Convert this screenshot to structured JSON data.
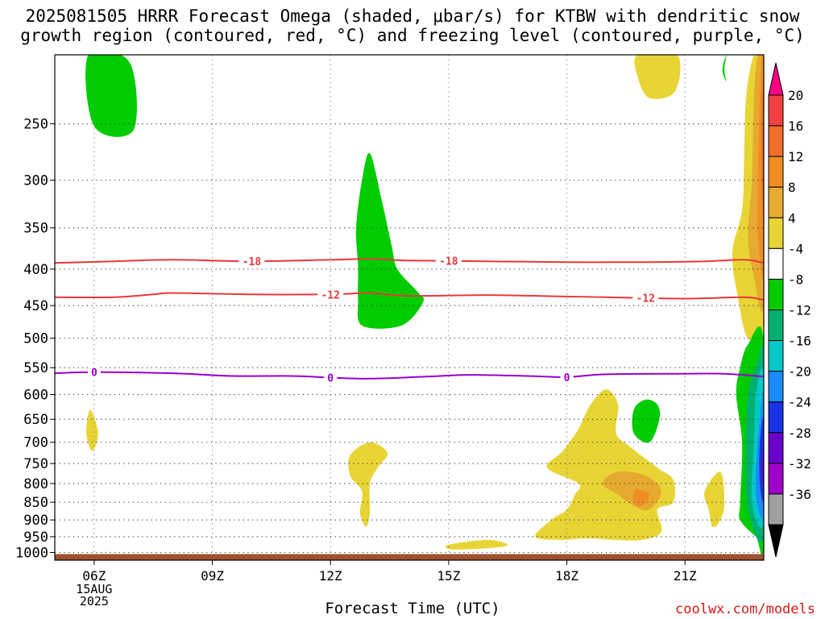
{
  "title_line1": "2025081505 HRRR Forecast Omega (shaded, μbar/s) for KTBW with dendritic snow",
  "title_line2": "growth region (contoured, red, °C) and freezing level (contoured, purple, °C)",
  "credit": "coolwx.com/models",
  "chart_data": {
    "type": "time-height contour",
    "xlabel": "Forecast Time (UTC)",
    "ylabel": "",
    "x_ticks": [
      "06Z",
      "09Z",
      "12Z",
      "15Z",
      "18Z",
      "21Z"
    ],
    "x_ticks_hours": [
      6,
      9,
      12,
      15,
      18,
      21
    ],
    "x_range_hours": [
      5,
      23
    ],
    "date_label": [
      "15AUG",
      "2025"
    ],
    "y_ticks": [
      250,
      300,
      350,
      400,
      450,
      500,
      550,
      600,
      650,
      700,
      750,
      800,
      850,
      900,
      950,
      1000
    ],
    "y_range_hPa": [
      200,
      1025
    ],
    "y_scale": "log",
    "grid": true,
    "colorbar": {
      "labels": [
        "20",
        "16",
        "12",
        "8",
        "4",
        "-4",
        "-8",
        "-12",
        "-16",
        "-20",
        "-24",
        "-28",
        "-32",
        "-36"
      ],
      "colors": [
        "#ff0080",
        "#f44040",
        "#f26c2a",
        "#f08e24",
        "#e6aa30",
        "#e8d535",
        "#ffffff",
        "#00cc00",
        "#00b070",
        "#00c8c8",
        "#1a8cff",
        "#1a32e6",
        "#6a00cc",
        "#a000c8",
        "#a0a0a0",
        "#000000"
      ]
    },
    "contours": [
      {
        "name": "-18",
        "color": "#e8383a",
        "label_at_hours": [
          10.0,
          15.0
        ],
        "points": [
          [
            5.0,
            392
          ],
          [
            6.5,
            390
          ],
          [
            8.0,
            388
          ],
          [
            10.0,
            390
          ],
          [
            12.0,
            388
          ],
          [
            13.0,
            387
          ],
          [
            14.0,
            389
          ],
          [
            16.0,
            390
          ],
          [
            18.0,
            391
          ],
          [
            20.0,
            391
          ],
          [
            21.5,
            390
          ],
          [
            22.5,
            388
          ],
          [
            23.0,
            392
          ]
        ]
      },
      {
        "name": "-12",
        "color": "#e8383a",
        "label_at_hours": [
          12.0,
          20.0
        ],
        "points": [
          [
            5.0,
            438
          ],
          [
            6.5,
            438
          ],
          [
            7.5,
            434
          ],
          [
            8.0,
            432
          ],
          [
            10.0,
            434
          ],
          [
            12.0,
            434
          ],
          [
            13.0,
            432
          ],
          [
            14.0,
            436
          ],
          [
            16.0,
            435
          ],
          [
            18.0,
            437
          ],
          [
            19.0,
            438
          ],
          [
            21.0,
            440
          ],
          [
            22.5,
            438
          ],
          [
            23.0,
            442
          ]
        ]
      },
      {
        "name": "0",
        "color": "#9900cc",
        "label_at_hours": [
          6.0,
          12.0,
          18.0
        ],
        "points": [
          [
            5.0,
            560
          ],
          [
            6.0,
            558
          ],
          [
            8.0,
            560
          ],
          [
            9.5,
            565
          ],
          [
            11.0,
            565
          ],
          [
            12.0,
            568
          ],
          [
            13.0,
            570
          ],
          [
            14.5,
            566
          ],
          [
            15.5,
            563
          ],
          [
            17.0,
            565
          ],
          [
            18.0,
            567
          ],
          [
            19.0,
            562
          ],
          [
            21.0,
            561
          ],
          [
            22.0,
            561
          ],
          [
            23.0,
            566
          ]
        ]
      }
    ],
    "omega_regions": [
      {
        "value": -8,
        "color": "#00cc00",
        "points": [
          [
            5.85,
            200
          ],
          [
            6.9,
            205
          ],
          [
            7.0,
            255
          ],
          [
            6.0,
            252
          ]
        ]
      },
      {
        "value": -8,
        "color": "#00cc00",
        "points": [
          [
            13.0,
            275
          ],
          [
            13.3,
            320
          ],
          [
            13.55,
            370
          ],
          [
            13.7,
            400
          ],
          [
            14.2,
            430
          ],
          [
            14.35,
            445
          ],
          [
            13.8,
            480
          ],
          [
            12.8,
            480
          ],
          [
            12.7,
            440
          ],
          [
            12.7,
            395
          ],
          [
            12.65,
            350
          ],
          [
            12.8,
            300
          ]
        ]
      },
      {
        "value": -8,
        "color": "#00cc00",
        "points": [
          [
            20.0,
            610
          ],
          [
            20.3,
            620
          ],
          [
            20.35,
            650
          ],
          [
            20.1,
            700
          ],
          [
            19.7,
            680
          ],
          [
            19.7,
            630
          ]
        ]
      },
      {
        "value": -8,
        "color": "#00cc00",
        "points": [
          [
            22.05,
            200
          ],
          [
            22.0,
            210
          ],
          [
            22.05,
            218
          ],
          [
            21.95,
            210
          ]
        ]
      },
      {
        "value": 4,
        "color": "#e8d535",
        "points": [
          [
            19.8,
            200
          ],
          [
            20.8,
            200
          ],
          [
            20.75,
            225
          ],
          [
            20.1,
            230
          ],
          [
            19.8,
            215
          ]
        ]
      },
      {
        "value": 4,
        "color": "#e8d535",
        "points": [
          [
            5.9,
            630
          ],
          [
            6.1,
            680
          ],
          [
            5.95,
            720
          ],
          [
            5.8,
            680
          ]
        ]
      },
      {
        "value": 4,
        "color": "#e8d535",
        "points": [
          [
            13.0,
            700
          ],
          [
            13.45,
            725
          ],
          [
            13.2,
            760
          ],
          [
            13.0,
            800
          ],
          [
            13.0,
            880
          ],
          [
            12.9,
            920
          ],
          [
            12.75,
            880
          ],
          [
            12.8,
            820
          ],
          [
            12.5,
            780
          ],
          [
            12.5,
            730
          ]
        ]
      },
      {
        "value": 4,
        "color": "#e8d535",
        "points": [
          [
            19.0,
            590
          ],
          [
            19.3,
            620
          ],
          [
            19.25,
            680
          ],
          [
            19.6,
            710
          ],
          [
            20.3,
            760
          ],
          [
            20.7,
            790
          ],
          [
            20.7,
            850
          ],
          [
            20.3,
            870
          ],
          [
            20.4,
            935
          ],
          [
            19.9,
            960
          ],
          [
            19.2,
            960
          ],
          [
            18.5,
            955
          ],
          [
            17.8,
            960
          ],
          [
            17.2,
            950
          ],
          [
            17.6,
            900
          ],
          [
            18.0,
            870
          ],
          [
            18.2,
            830
          ],
          [
            18.3,
            800
          ],
          [
            17.5,
            760
          ],
          [
            17.9,
            720
          ],
          [
            18.3,
            670
          ],
          [
            18.6,
            620
          ]
        ]
      },
      {
        "value": 4,
        "color": "#e8d535",
        "points": [
          [
            16.0,
            960
          ],
          [
            16.5,
            975
          ],
          [
            16.1,
            985
          ],
          [
            15.1,
            990
          ],
          [
            15.0,
            975
          ]
        ]
      },
      {
        "value": 4,
        "color": "#e8d535",
        "points": [
          [
            21.9,
            770
          ],
          [
            22.0,
            850
          ],
          [
            21.9,
            900
          ],
          [
            21.7,
            920
          ],
          [
            21.6,
            870
          ],
          [
            21.5,
            820
          ]
        ]
      },
      {
        "value": 8,
        "color": "#e6aa30",
        "points": [
          [
            19.3,
            770
          ],
          [
            20.0,
            780
          ],
          [
            20.4,
            820
          ],
          [
            20.1,
            870
          ],
          [
            19.7,
            860
          ],
          [
            19.3,
            830
          ],
          [
            18.9,
            800
          ]
        ]
      },
      {
        "value": 12,
        "color": "#f08e24",
        "points": [
          [
            19.8,
            815
          ],
          [
            20.1,
            830
          ],
          [
            19.9,
            860
          ],
          [
            19.7,
            850
          ],
          [
            19.7,
            825
          ]
        ]
      },
      {
        "value": 4,
        "color": "#e8d535",
        "points": [
          [
            23.0,
            200
          ],
          [
            23.0,
            470
          ],
          [
            22.6,
            500
          ],
          [
            22.35,
            440
          ],
          [
            22.2,
            380
          ],
          [
            22.45,
            330
          ],
          [
            22.5,
            280
          ],
          [
            22.55,
            230
          ],
          [
            22.75,
            200
          ]
        ]
      },
      {
        "value": 8,
        "color": "#e6aa30",
        "points": [
          [
            23.0,
            200
          ],
          [
            23.0,
            440
          ],
          [
            22.75,
            410
          ],
          [
            22.6,
            360
          ],
          [
            22.7,
            300
          ],
          [
            22.75,
            230
          ],
          [
            22.85,
            200
          ]
        ]
      },
      {
        "value": 12,
        "color": "#f08e24",
        "points": [
          [
            23.0,
            200
          ],
          [
            23.0,
            400
          ],
          [
            22.85,
            360
          ],
          [
            22.85,
            300
          ],
          [
            22.9,
            230
          ],
          [
            22.95,
            200
          ]
        ]
      },
      {
        "value": 16,
        "color": "#f26c2a",
        "points": [
          [
            23.0,
            220
          ],
          [
            23.0,
            340
          ],
          [
            22.95,
            300
          ],
          [
            22.95,
            240
          ]
        ]
      },
      {
        "value": -8,
        "color": "#00cc00",
        "points": [
          [
            23.0,
            505
          ],
          [
            23.0,
            970
          ],
          [
            22.8,
            950
          ],
          [
            22.4,
            900
          ],
          [
            22.4,
            850
          ],
          [
            22.45,
            700
          ],
          [
            22.3,
            600
          ],
          [
            22.4,
            550
          ],
          [
            22.6,
            510
          ]
        ]
      },
      {
        "value": -12,
        "color": "#00b070",
        "points": [
          [
            23.0,
            530
          ],
          [
            23.0,
            940
          ],
          [
            22.6,
            870
          ],
          [
            22.55,
            720
          ],
          [
            22.6,
            600
          ],
          [
            22.8,
            550
          ]
        ]
      },
      {
        "value": -16,
        "color": "#00c8c8",
        "points": [
          [
            23.0,
            560
          ],
          [
            23.0,
            900
          ],
          [
            22.7,
            850
          ],
          [
            22.75,
            700
          ],
          [
            22.8,
            600
          ]
        ]
      },
      {
        "value": -20,
        "color": "#1a8cff",
        "points": [
          [
            23.0,
            600
          ],
          [
            23.0,
            880
          ],
          [
            22.8,
            830
          ],
          [
            22.85,
            700
          ]
        ]
      },
      {
        "value": -24,
        "color": "#1a32e6",
        "points": [
          [
            23.0,
            650
          ],
          [
            23.0,
            840
          ],
          [
            22.9,
            800
          ],
          [
            22.9,
            700
          ]
        ]
      },
      {
        "value": -28,
        "color": "#6a00cc",
        "points": [
          [
            23.0,
            700
          ],
          [
            23.0,
            810
          ],
          [
            22.95,
            760
          ]
        ]
      }
    ],
    "surface": {
      "color": "#a0522d",
      "from_hPa": 1005
    }
  }
}
